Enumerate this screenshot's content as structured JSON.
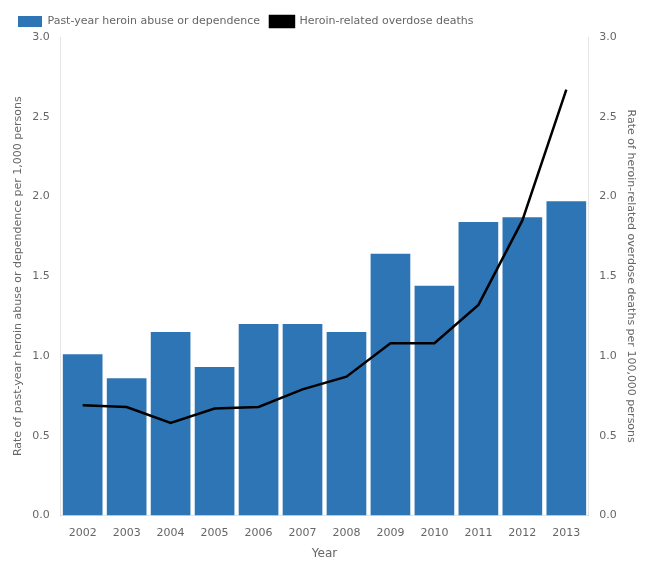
{
  "chart_data": {
    "type": "bar",
    "xlabel": "Year",
    "ylabel": "Rate of past-year heroin abuse or dependence per 1,000 persons",
    "y2label": "Rate of heroin-related overdose deaths per 100,000 persons",
    "categories": [
      "2002",
      "2003",
      "2004",
      "2005",
      "2006",
      "2007",
      "2008",
      "2009",
      "2010",
      "2011",
      "2012",
      "2013"
    ],
    "series": [
      {
        "name": "Past-year heroin abuse or dependence",
        "type": "bar",
        "color": "#2E75B6",
        "values": [
          1.01,
          0.86,
          1.15,
          0.93,
          1.2,
          1.2,
          1.15,
          1.64,
          1.44,
          1.84,
          1.87,
          1.97
        ]
      },
      {
        "name": "Heroin-related overdose deaths",
        "type": "line",
        "color": "#000000",
        "axis": "y2",
        "values": [
          0.69,
          0.68,
          0.58,
          0.67,
          0.68,
          0.79,
          0.87,
          1.08,
          1.08,
          1.32,
          1.85,
          2.67
        ]
      }
    ],
    "ylim": [
      0.0,
      3.0
    ],
    "yticks": [
      {
        "value": 0,
        "label": "0.0"
      },
      0.5,
      {
        "value": 1,
        "label": "1.0"
      },
      1.5,
      {
        "value": 2,
        "label": "2.0"
      },
      2.5,
      {
        "value": 3,
        "label": "3.0"
      }
    ],
    "y2lim": [
      0.0,
      3.0
    ],
    "y2ticks": [
      {
        "value": 0,
        "label": "0.0"
      },
      0.5,
      {
        "value": 1,
        "label": "1.0"
      },
      1.5,
      {
        "value": 2,
        "label": "2.0"
      },
      2.5,
      {
        "value": 3,
        "label": "3.0"
      }
    ],
    "grid": false,
    "legend": "upper left"
  }
}
